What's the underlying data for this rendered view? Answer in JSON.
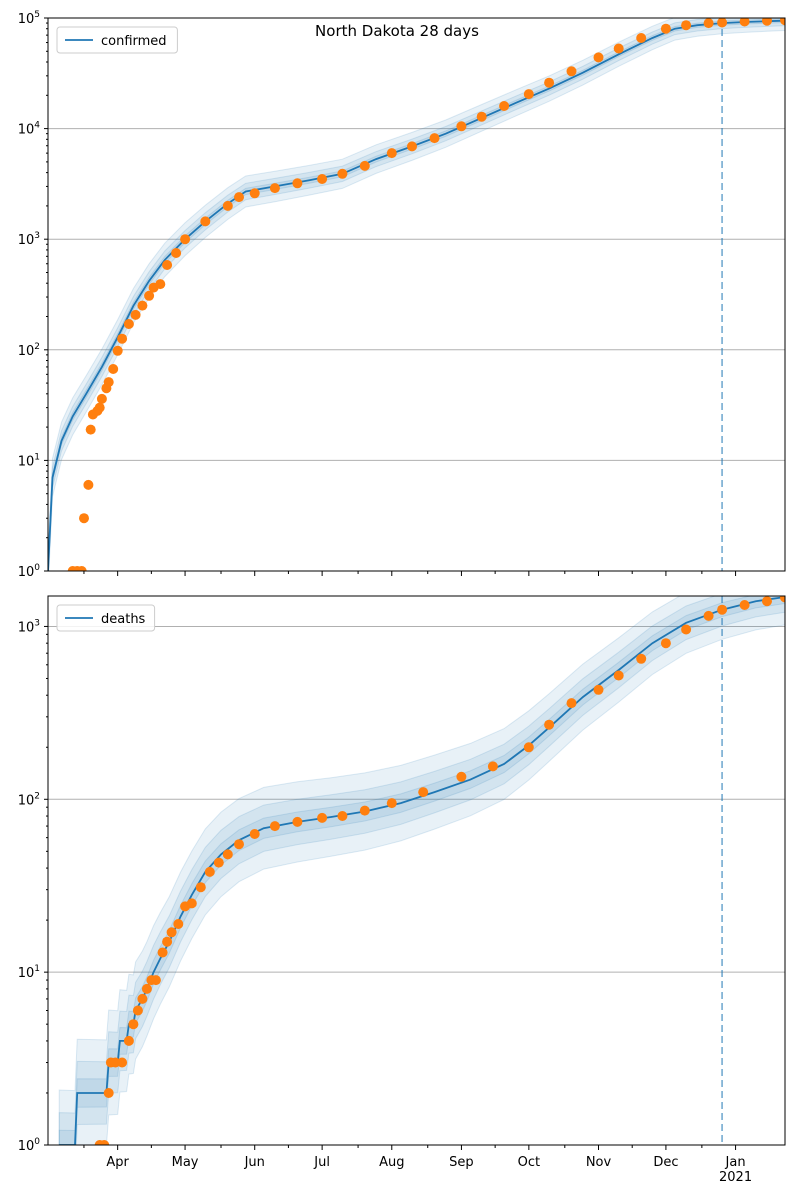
{
  "figure_title": "North Dakota 28 days",
  "colors": {
    "model_line": "#1f77b4",
    "observed_points": "#ff7f0e",
    "band": "#1f77b4",
    "grid": "#b0b0b0",
    "vline": "#1f77b4"
  },
  "chart_data": [
    {
      "type": "line",
      "panel": "top",
      "legend": [
        "confirmed"
      ],
      "legend_position": "top-left",
      "y_scale": "log",
      "ylim": [
        1,
        100000
      ],
      "xlim": [
        "2020-03-01",
        "2021-01-23"
      ],
      "grid": "y-major",
      "y_ticks": [
        {
          "v": 1,
          "base": "10",
          "exp": "0"
        },
        {
          "v": 10,
          "base": "10",
          "exp": "1"
        },
        {
          "v": 100,
          "base": "10",
          "exp": "2"
        },
        {
          "v": 1000,
          "base": "10",
          "exp": "3"
        },
        {
          "v": 10000,
          "base": "10",
          "exp": "4"
        },
        {
          "v": 100000,
          "base": "10",
          "exp": "5"
        }
      ],
      "forecast_start": "2020-12-26",
      "series": [
        {
          "name": "confirmed",
          "kind": "model",
          "x": [
            "2020-03-01",
            "2020-03-03",
            "2020-03-07",
            "2020-03-12",
            "2020-03-18",
            "2020-03-25",
            "2020-04-01",
            "2020-04-08",
            "2020-04-15",
            "2020-04-22",
            "2020-05-01",
            "2020-05-10",
            "2020-05-20",
            "2020-05-28",
            "2020-06-10",
            "2020-06-25",
            "2020-07-10",
            "2020-07-25",
            "2020-08-10",
            "2020-08-25",
            "2020-09-10",
            "2020-09-25",
            "2020-10-10",
            "2020-10-25",
            "2020-11-10",
            "2020-11-25",
            "2020-12-05",
            "2020-12-15",
            "2020-12-26",
            "2021-01-05",
            "2021-01-15",
            "2021-01-23"
          ],
          "y": [
            1,
            7,
            15,
            25,
            40,
            70,
            130,
            250,
            420,
            650,
            1000,
            1450,
            2100,
            2700,
            3000,
            3400,
            3900,
            5300,
            6900,
            9000,
            12500,
            17000,
            23000,
            32000,
            47000,
            66000,
            80000,
            86000,
            90000,
            92000,
            93500,
            94500
          ]
        },
        {
          "name": "",
          "kind": "observed",
          "x": [
            "2020-03-12",
            "2020-03-14",
            "2020-03-16",
            "2020-03-17",
            "2020-03-19",
            "2020-03-20",
            "2020-03-21",
            "2020-03-23",
            "2020-03-24",
            "2020-03-25",
            "2020-03-27",
            "2020-03-28",
            "2020-03-30",
            "2020-04-01",
            "2020-04-03",
            "2020-04-06",
            "2020-04-09",
            "2020-04-12",
            "2020-04-15",
            "2020-04-17",
            "2020-04-20",
            "2020-04-23",
            "2020-04-27",
            "2020-05-01",
            "2020-05-10",
            "2020-05-20",
            "2020-05-25",
            "2020-06-01",
            "2020-06-10",
            "2020-06-20",
            "2020-07-01",
            "2020-07-10",
            "2020-07-20",
            "2020-08-01",
            "2020-08-10",
            "2020-08-20",
            "2020-09-01",
            "2020-09-10",
            "2020-09-20",
            "2020-10-01",
            "2020-10-10",
            "2020-10-20",
            "2020-11-01",
            "2020-11-10",
            "2020-11-20",
            "2020-12-01",
            "2020-12-10",
            "2020-12-20",
            "2020-12-26",
            "2021-01-05",
            "2021-01-15",
            "2021-01-23"
          ],
          "y": [
            1,
            1,
            1,
            3,
            6,
            19,
            26,
            28,
            30,
            36,
            45,
            51,
            67,
            98,
            126,
            171,
            207,
            251,
            308,
            365,
            393,
            585,
            750,
            1000,
            1450,
            2000,
            2400,
            2600,
            2900,
            3200,
            3500,
            3900,
            4600,
            6000,
            6900,
            8200,
            10500,
            12800,
            16000,
            20500,
            26000,
            33000,
            44000,
            53000,
            66000,
            80000,
            86000,
            90000,
            91000,
            93000,
            94500,
            95500
          ]
        }
      ]
    },
    {
      "type": "line",
      "panel": "bottom",
      "legend": [
        "deaths"
      ],
      "legend_position": "top-left",
      "y_scale": "log",
      "ylim": [
        1,
        1500
      ],
      "xlim": [
        "2020-03-01",
        "2021-01-23"
      ],
      "grid": "y-major",
      "y_ticks": [
        {
          "v": 1,
          "base": "10",
          "exp": "0"
        },
        {
          "v": 10,
          "base": "10",
          "exp": "1"
        },
        {
          "v": 100,
          "base": "10",
          "exp": "2"
        },
        {
          "v": 1000,
          "base": "10",
          "exp": "3"
        }
      ],
      "x_ticks": [
        {
          "date": "2020-04-01",
          "label": "Apr",
          "sub": ""
        },
        {
          "date": "2020-05-01",
          "label": "May",
          "sub": ""
        },
        {
          "date": "2020-06-01",
          "label": "Jun",
          "sub": ""
        },
        {
          "date": "2020-07-01",
          "label": "Jul",
          "sub": ""
        },
        {
          "date": "2020-08-01",
          "label": "Aug",
          "sub": ""
        },
        {
          "date": "2020-09-01",
          "label": "Sep",
          "sub": ""
        },
        {
          "date": "2020-10-01",
          "label": "Oct",
          "sub": ""
        },
        {
          "date": "2020-11-01",
          "label": "Nov",
          "sub": ""
        },
        {
          "date": "2020-12-01",
          "label": "Dec",
          "sub": ""
        },
        {
          "date": "2021-01-01",
          "label": "Jan",
          "sub": "2021"
        }
      ],
      "forecast_start": "2020-12-26",
      "series": [
        {
          "name": "deaths",
          "kind": "model",
          "x": [
            "2020-03-06",
            "2020-03-13",
            "2020-03-14",
            "2020-03-27",
            "2020-03-28",
            "2020-04-01",
            "2020-04-02",
            "2020-04-05",
            "2020-04-06",
            "2020-04-08",
            "2020-04-09",
            "2020-04-12",
            "2020-04-14",
            "2020-04-17",
            "2020-04-20",
            "2020-04-24",
            "2020-04-29",
            "2020-05-04",
            "2020-05-10",
            "2020-05-17",
            "2020-05-25",
            "2020-06-05",
            "2020-06-20",
            "2020-07-05",
            "2020-07-20",
            "2020-08-05",
            "2020-08-20",
            "2020-09-05",
            "2020-09-20",
            "2020-10-01",
            "2020-10-10",
            "2020-10-25",
            "2020-11-10",
            "2020-11-25",
            "2020-12-10",
            "2020-12-26",
            "2021-01-10",
            "2021-01-23"
          ],
          "y": [
            1,
            1,
            2,
            2,
            3,
            3,
            4,
            4,
            5,
            5,
            6,
            7,
            8,
            10,
            12,
            15,
            21,
            28,
            38,
            48,
            58,
            68,
            74,
            79,
            85,
            95,
            110,
            130,
            160,
            205,
            260,
            390,
            560,
            800,
            1050,
            1250,
            1400,
            1480
          ]
        },
        {
          "name": "",
          "kind": "observed",
          "x": [
            "2020-03-24",
            "2020-03-26",
            "2020-03-28",
            "2020-03-29",
            "2020-03-31",
            "2020-04-03",
            "2020-04-06",
            "2020-04-08",
            "2020-04-10",
            "2020-04-12",
            "2020-04-14",
            "2020-04-16",
            "2020-04-18",
            "2020-04-21",
            "2020-04-23",
            "2020-04-25",
            "2020-04-28",
            "2020-05-01",
            "2020-05-04",
            "2020-05-08",
            "2020-05-12",
            "2020-05-16",
            "2020-05-20",
            "2020-05-25",
            "2020-06-01",
            "2020-06-10",
            "2020-06-20",
            "2020-07-01",
            "2020-07-10",
            "2020-07-20",
            "2020-08-01",
            "2020-08-15",
            "2020-09-01",
            "2020-09-15",
            "2020-10-01",
            "2020-10-10",
            "2020-10-20",
            "2020-11-01",
            "2020-11-10",
            "2020-11-20",
            "2020-12-01",
            "2020-12-10",
            "2020-12-20",
            "2020-12-26",
            "2021-01-05",
            "2021-01-15",
            "2021-01-23"
          ],
          "y": [
            1,
            1,
            2,
            3,
            3,
            3,
            4,
            5,
            6,
            7,
            8,
            9,
            9,
            13,
            15,
            17,
            19,
            24,
            25,
            31,
            38,
            43,
            48,
            55,
            63,
            70,
            74,
            78,
            80,
            86,
            95,
            110,
            135,
            155,
            200,
            270,
            360,
            430,
            520,
            650,
            800,
            960,
            1150,
            1250,
            1330,
            1400,
            1470
          ]
        }
      ]
    }
  ]
}
